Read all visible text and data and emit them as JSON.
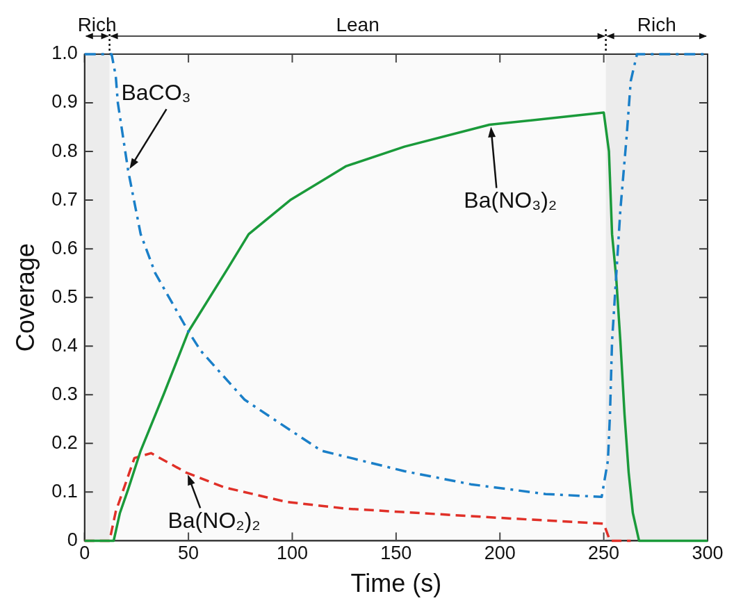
{
  "chart_data": {
    "type": "line",
    "xlabel": "Time (s)",
    "ylabel": "Coverage",
    "xlim": [
      0,
      300
    ],
    "xticks": [
      0,
      50,
      100,
      150,
      200,
      250,
      300
    ],
    "ylim": [
      0,
      1
    ],
    "yticks": [
      0,
      0.1,
      0.2,
      0.3,
      0.4,
      0.5,
      0.6,
      0.7,
      0.8,
      0.9,
      {
        "value": 1,
        "label": "1.0"
      }
    ],
    "grid": false,
    "legend": false,
    "marker": "none",
    "series": [
      {
        "color": "#1a7fc8",
        "line_style": "dashdot",
        "x": [
          0,
          8,
          12,
          13,
          15,
          16,
          21,
          27,
          34,
          50,
          56,
          77,
          91,
          114,
          154,
          186,
          222,
          249,
          252,
          253,
          254,
          256,
          258,
          261,
          263,
          266,
          300
        ],
        "values": [
          1,
          1,
          1,
          1,
          0.955,
          0.9,
          0.76,
          0.63,
          0.55,
          0.43,
          0.39,
          0.29,
          0.25,
          0.185,
          0.143,
          0.116,
          0.096,
          0.09,
          0.165,
          0.26,
          0.41,
          0.545,
          0.68,
          0.83,
          0.945,
          1,
          1
        ]
      },
      {
        "color": "#1a9a3a",
        "line_style": "solid",
        "x": [
          0,
          14,
          17,
          21,
          27,
          38,
          50,
          69,
          79,
          99,
          126,
          154,
          195,
          250,
          252.5,
          254,
          256,
          258,
          260,
          262,
          264,
          267,
          300
        ],
        "values": [
          0,
          0,
          0.057,
          0.106,
          0.185,
          0.3,
          0.43,
          0.56,
          0.63,
          0.7,
          0.77,
          0.81,
          0.855,
          0.88,
          0.8,
          0.63,
          0.54,
          0.41,
          0.26,
          0.14,
          0.057,
          0,
          0
        ]
      },
      {
        "color": "#e03028",
        "line_style": "dashed",
        "x": [
          0,
          12,
          15,
          24,
          32,
          49,
          67,
          97,
          126,
          153,
          200,
          250,
          253,
          263
        ],
        "values": [
          0,
          0,
          0.06,
          0.17,
          0.18,
          0.14,
          0.11,
          0.08,
          0.066,
          0.059,
          0.047,
          0.035,
          0,
          0
        ]
      }
    ],
    "annotations": [
      {
        "text": "BaCO₃",
        "x": 21,
        "y": 0.76
      },
      {
        "text": "Ba(NO₃)₂",
        "x": 195,
        "y": 0.855
      },
      {
        "text": "Ba(NO₂)₂",
        "x": 49,
        "y": 0.14
      }
    ],
    "bands": [
      {
        "axis": "x",
        "from": 0,
        "to": 12,
        "label": "Rich",
        "color": "#a0a0a0"
      },
      {
        "axis": "x",
        "from": 12,
        "to": 251,
        "label": "Lean",
        "color": "#e6e6e6"
      },
      {
        "axis": "x",
        "from": 251,
        "to": 300,
        "label": "Rich",
        "color": "#a0a0a0"
      }
    ]
  }
}
